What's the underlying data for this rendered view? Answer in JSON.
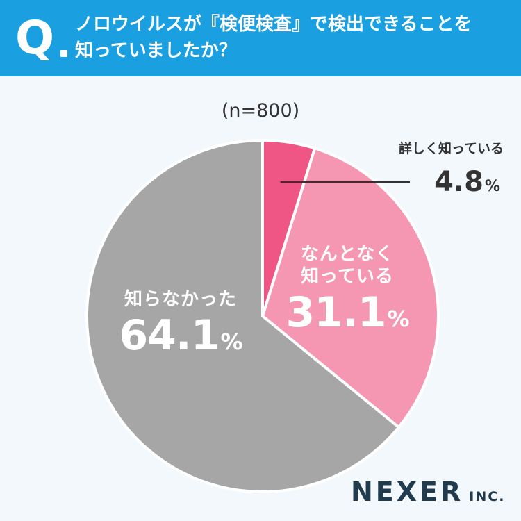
{
  "header": {
    "q_mark": "Q",
    "question_line1": "ノロウイルスが『検便検査』で検出できることを",
    "question_line2": "知っていましたか？"
  },
  "sample_note": "(n=800)",
  "chart_data": {
    "type": "pie",
    "title": "",
    "slices": [
      {
        "label": "詳しく知っている",
        "value": 4.8,
        "display": "4.8",
        "color": "#ef5585"
      },
      {
        "label": "なんとなく知っている",
        "label_line1": "なんとなく",
        "label_line2": "知っている",
        "value": 31.1,
        "display": "31.1",
        "color": "#f597b2"
      },
      {
        "label": "知らなかった",
        "value": 64.1,
        "display": "64.1",
        "color": "#a6a6a6"
      }
    ],
    "percent_sign": "%",
    "start_angle": "12 o'clock",
    "direction": "clockwise",
    "separator_color": "#ffffff",
    "callout_line_color": "#333333"
  },
  "logo": {
    "main": "NEXER",
    "suffix": "INC."
  }
}
